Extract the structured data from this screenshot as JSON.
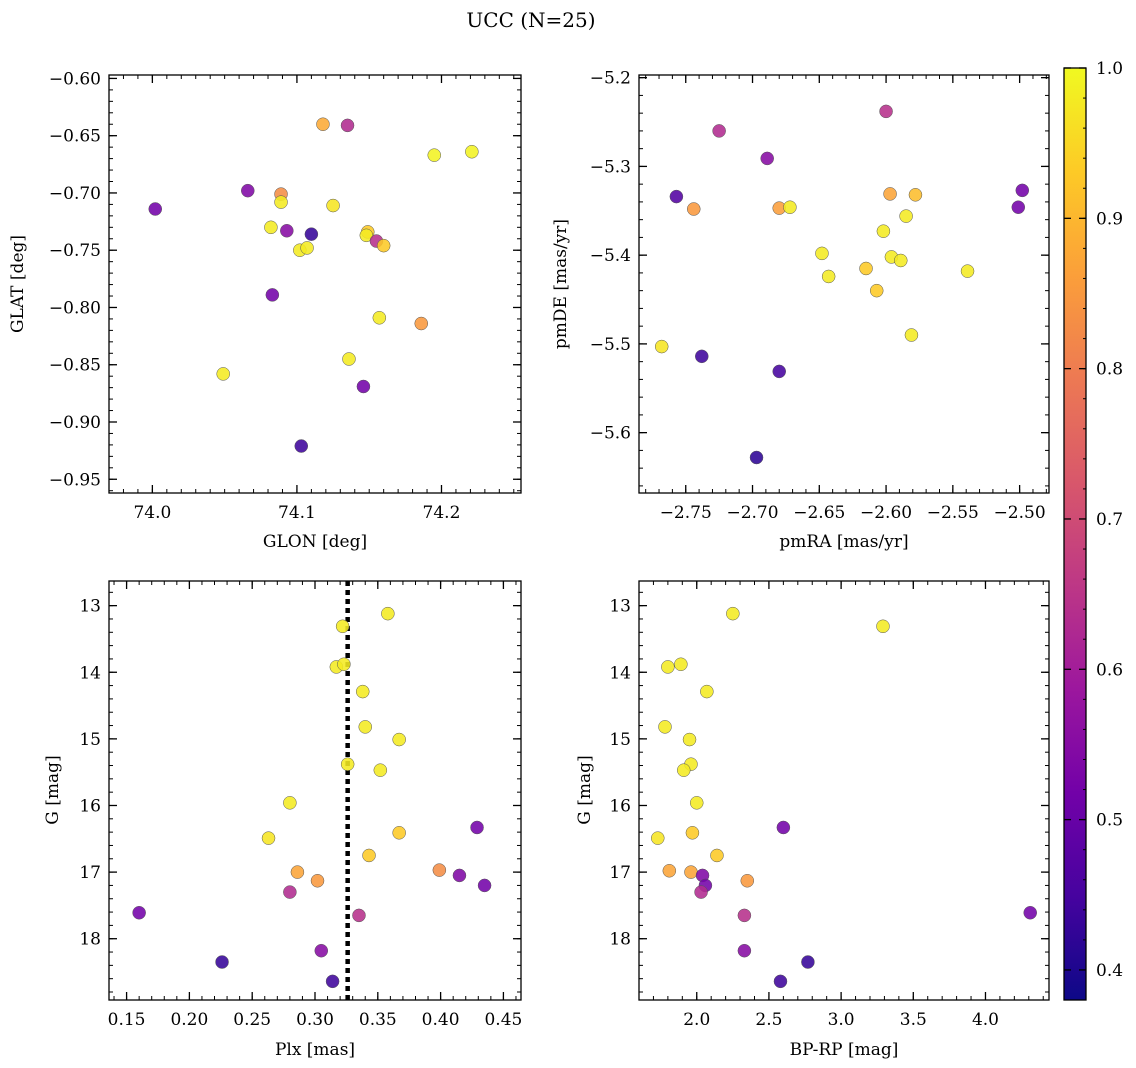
{
  "figure": {
    "title": "UCC (N=25)"
  },
  "colors": {
    "plasma": [
      "#0d0887",
      "#46039f",
      "#7201a8",
      "#9c179e",
      "#bd3786",
      "#d8576b",
      "#ed7953",
      "#fb9f3a",
      "#fdca26",
      "#f0f921"
    ],
    "line": "#000000",
    "frame": "#000000",
    "marker_edge": "#555555"
  },
  "colorbar": {
    "range": [
      0.38,
      1.0
    ],
    "ticks": [
      "0.4",
      "0.5",
      "0.6",
      "0.7",
      "0.8",
      "0.9",
      "1.0"
    ]
  },
  "chart_data": [
    {
      "type": "scatter",
      "title": "",
      "xlabel": "GLON [deg]",
      "ylabel": "GLAT [deg]",
      "xlim": [
        73.97,
        74.255
      ],
      "ylim": [
        -0.962,
        -0.597
      ],
      "xticks": [
        "74.0",
        "74.1",
        "74.2"
      ],
      "yticks": [
        "−0.60",
        "−0.65",
        "−0.70",
        "−0.75",
        "−0.80",
        "−0.85",
        "−0.90",
        "−0.95"
      ],
      "points": [
        {
          "x": 74.002,
          "y": -0.714,
          "c": 0.52
        },
        {
          "x": 74.066,
          "y": -0.698,
          "c": 0.54
        },
        {
          "x": 74.089,
          "y": -0.701,
          "c": 0.83
        },
        {
          "x": 74.089,
          "y": -0.708,
          "c": 0.98
        },
        {
          "x": 74.082,
          "y": -0.73,
          "c": 0.98
        },
        {
          "x": 74.093,
          "y": -0.733,
          "c": 0.55
        },
        {
          "x": 74.11,
          "y": -0.736,
          "c": 0.43
        },
        {
          "x": 74.118,
          "y": -0.64,
          "c": 0.88
        },
        {
          "x": 74.135,
          "y": -0.641,
          "c": 0.63
        },
        {
          "x": 74.125,
          "y": -0.711,
          "c": 0.97
        },
        {
          "x": 74.102,
          "y": -0.75,
          "c": 0.98
        },
        {
          "x": 74.107,
          "y": -0.748,
          "c": 0.98
        },
        {
          "x": 74.149,
          "y": -0.734,
          "c": 0.93
        },
        {
          "x": 74.148,
          "y": -0.737,
          "c": 0.98
        },
        {
          "x": 74.155,
          "y": -0.742,
          "c": 0.64
        },
        {
          "x": 74.16,
          "y": -0.746,
          "c": 0.93
        },
        {
          "x": 74.083,
          "y": -0.789,
          "c": 0.52
        },
        {
          "x": 74.157,
          "y": -0.809,
          "c": 0.98
        },
        {
          "x": 74.186,
          "y": -0.814,
          "c": 0.85
        },
        {
          "x": 74.195,
          "y": -0.667,
          "c": 0.99
        },
        {
          "x": 74.221,
          "y": -0.664,
          "c": 0.99
        },
        {
          "x": 74.049,
          "y": -0.858,
          "c": 0.98
        },
        {
          "x": 74.136,
          "y": -0.845,
          "c": 0.98
        },
        {
          "x": 74.146,
          "y": -0.869,
          "c": 0.52
        },
        {
          "x": 74.103,
          "y": -0.921,
          "c": 0.44
        }
      ]
    },
    {
      "type": "scatter",
      "title": "",
      "xlabel": "pmRA [mas/yr]",
      "ylabel": "pmDE [mas/yr]",
      "xlim": [
        -2.785,
        -2.478
      ],
      "ylim": [
        -5.668,
        -5.197
      ],
      "xticks": [
        "−2.75",
        "−2.70",
        "−2.65",
        "−2.60",
        "−2.55",
        "−2.50"
      ],
      "yticks": [
        "−5.2",
        "−5.3",
        "−5.4",
        "−5.5",
        "−5.6"
      ],
      "points": [
        {
          "x": -2.6,
          "y": -5.238,
          "c": 0.64
        },
        {
          "x": -2.725,
          "y": -5.26,
          "c": 0.63
        },
        {
          "x": -2.689,
          "y": -5.291,
          "c": 0.55
        },
        {
          "x": -2.757,
          "y": -5.334,
          "c": 0.47
        },
        {
          "x": -2.744,
          "y": -5.348,
          "c": 0.85
        },
        {
          "x": -2.68,
          "y": -5.347,
          "c": 0.86
        },
        {
          "x": -2.672,
          "y": -5.346,
          "c": 0.98
        },
        {
          "x": -2.597,
          "y": -5.331,
          "c": 0.87
        },
        {
          "x": -2.578,
          "y": -5.332,
          "c": 0.91
        },
        {
          "x": -2.498,
          "y": -5.327,
          "c": 0.52
        },
        {
          "x": -2.501,
          "y": -5.346,
          "c": 0.52
        },
        {
          "x": -2.585,
          "y": -5.356,
          "c": 0.98
        },
        {
          "x": -2.602,
          "y": -5.373,
          "c": 0.98
        },
        {
          "x": -2.648,
          "y": -5.398,
          "c": 0.98
        },
        {
          "x": -2.596,
          "y": -5.402,
          "c": 0.98
        },
        {
          "x": -2.589,
          "y": -5.406,
          "c": 0.98
        },
        {
          "x": -2.643,
          "y": -5.424,
          "c": 0.98
        },
        {
          "x": -2.615,
          "y": -5.415,
          "c": 0.93
        },
        {
          "x": -2.539,
          "y": -5.418,
          "c": 0.98
        },
        {
          "x": -2.607,
          "y": -5.44,
          "c": 0.93
        },
        {
          "x": -2.581,
          "y": -5.49,
          "c": 0.98
        },
        {
          "x": -2.768,
          "y": -5.503,
          "c": 0.97
        },
        {
          "x": -2.738,
          "y": -5.514,
          "c": 0.44
        },
        {
          "x": -2.68,
          "y": -5.531,
          "c": 0.45
        },
        {
          "x": -2.697,
          "y": -5.628,
          "c": 0.42
        }
      ]
    },
    {
      "type": "scatter",
      "title": "",
      "xlabel": "Plx [mas]",
      "ylabel": "G [mag]",
      "xlim": [
        0.136,
        0.464
      ],
      "ylim": [
        18.92,
        12.63
      ],
      "y_inverted": true,
      "xticks": [
        "0.15",
        "0.20",
        "0.25",
        "0.30",
        "0.35",
        "0.40",
        "0.45"
      ],
      "yticks": [
        "13",
        "14",
        "15",
        "16",
        "17",
        "18"
      ],
      "vline": {
        "x": 0.326,
        "style": "dotted"
      },
      "points": [
        {
          "x": 0.358,
          "y": 13.12,
          "c": 0.98
        },
        {
          "x": 0.322,
          "y": 13.31,
          "c": 0.98
        },
        {
          "x": 0.317,
          "y": 13.92,
          "c": 0.98
        },
        {
          "x": 0.323,
          "y": 13.88,
          "c": 0.98
        },
        {
          "x": 0.338,
          "y": 14.29,
          "c": 0.98
        },
        {
          "x": 0.34,
          "y": 14.82,
          "c": 0.98
        },
        {
          "x": 0.367,
          "y": 15.01,
          "c": 0.98
        },
        {
          "x": 0.326,
          "y": 15.38,
          "c": 0.98
        },
        {
          "x": 0.352,
          "y": 15.47,
          "c": 0.98
        },
        {
          "x": 0.28,
          "y": 15.96,
          "c": 0.98
        },
        {
          "x": 0.263,
          "y": 16.49,
          "c": 0.97
        },
        {
          "x": 0.367,
          "y": 16.41,
          "c": 0.93
        },
        {
          "x": 0.429,
          "y": 16.33,
          "c": 0.52
        },
        {
          "x": 0.343,
          "y": 16.75,
          "c": 0.93
        },
        {
          "x": 0.286,
          "y": 17.0,
          "c": 0.87
        },
        {
          "x": 0.302,
          "y": 17.13,
          "c": 0.85
        },
        {
          "x": 0.399,
          "y": 16.97,
          "c": 0.83
        },
        {
          "x": 0.415,
          "y": 17.05,
          "c": 0.54
        },
        {
          "x": 0.435,
          "y": 17.2,
          "c": 0.52
        },
        {
          "x": 0.28,
          "y": 17.3,
          "c": 0.63
        },
        {
          "x": 0.16,
          "y": 17.61,
          "c": 0.52
        },
        {
          "x": 0.335,
          "y": 17.65,
          "c": 0.64
        },
        {
          "x": 0.226,
          "y": 18.35,
          "c": 0.43
        },
        {
          "x": 0.305,
          "y": 18.18,
          "c": 0.55
        },
        {
          "x": 0.314,
          "y": 18.64,
          "c": 0.44
        }
      ]
    },
    {
      "type": "scatter",
      "title": "",
      "xlabel": "BP-RP [mag]",
      "ylabel": "G [mag]",
      "xlim": [
        1.6,
        4.44
      ],
      "ylim": [
        18.92,
        12.63
      ],
      "y_inverted": true,
      "xticks": [
        "2.0",
        "2.5",
        "3.0",
        "3.5",
        "4.0"
      ],
      "yticks": [
        "13",
        "14",
        "15",
        "16",
        "17",
        "18"
      ],
      "points": [
        {
          "x": 2.25,
          "y": 13.12,
          "c": 0.98
        },
        {
          "x": 3.29,
          "y": 13.31,
          "c": 0.98
        },
        {
          "x": 1.8,
          "y": 13.92,
          "c": 0.98
        },
        {
          "x": 1.89,
          "y": 13.88,
          "c": 0.98
        },
        {
          "x": 2.07,
          "y": 14.29,
          "c": 0.98
        },
        {
          "x": 1.78,
          "y": 14.82,
          "c": 0.98
        },
        {
          "x": 1.95,
          "y": 15.01,
          "c": 0.98
        },
        {
          "x": 1.96,
          "y": 15.38,
          "c": 0.98
        },
        {
          "x": 1.91,
          "y": 15.47,
          "c": 0.98
        },
        {
          "x": 2.0,
          "y": 15.96,
          "c": 0.98
        },
        {
          "x": 1.73,
          "y": 16.49,
          "c": 0.97
        },
        {
          "x": 1.97,
          "y": 16.41,
          "c": 0.93
        },
        {
          "x": 2.6,
          "y": 16.33,
          "c": 0.52
        },
        {
          "x": 2.14,
          "y": 16.75,
          "c": 0.93
        },
        {
          "x": 1.81,
          "y": 16.98,
          "c": 0.87
        },
        {
          "x": 1.96,
          "y": 17.0,
          "c": 0.87
        },
        {
          "x": 2.35,
          "y": 17.13,
          "c": 0.85
        },
        {
          "x": 2.04,
          "y": 17.05,
          "c": 0.54
        },
        {
          "x": 2.06,
          "y": 17.2,
          "c": 0.52
        },
        {
          "x": 2.03,
          "y": 17.3,
          "c": 0.63
        },
        {
          "x": 4.31,
          "y": 17.61,
          "c": 0.52
        },
        {
          "x": 2.33,
          "y": 17.65,
          "c": 0.64
        },
        {
          "x": 2.33,
          "y": 18.18,
          "c": 0.55
        },
        {
          "x": 2.77,
          "y": 18.35,
          "c": 0.43
        },
        {
          "x": 2.58,
          "y": 18.64,
          "c": 0.44
        }
      ]
    }
  ]
}
